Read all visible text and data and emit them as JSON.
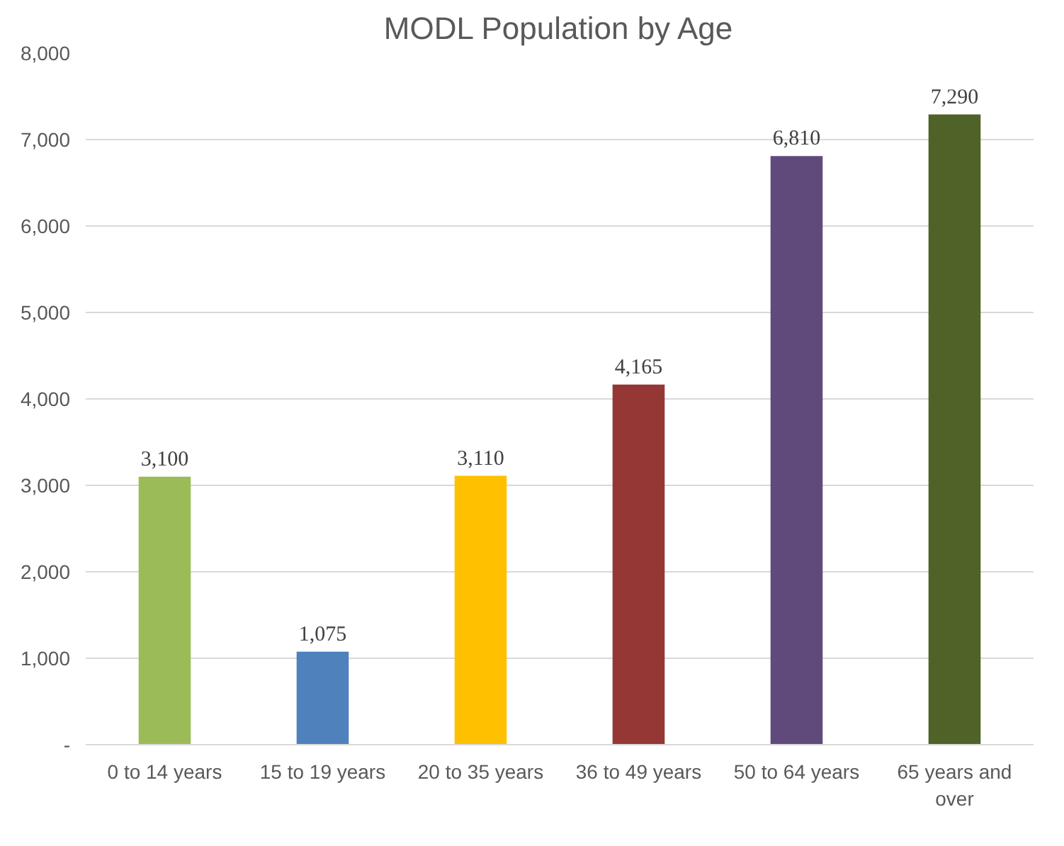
{
  "chart_data": {
    "type": "bar",
    "title": "MODL Population by Age",
    "categories": [
      "0 to 14 years",
      "15 to 19 years",
      "20 to 35 years",
      "36 to 49 years",
      "50 to 64 years",
      "65 years and over"
    ],
    "values": [
      3100,
      1075,
      3110,
      4165,
      6810,
      7290
    ],
    "colors": [
      "#9bbb59",
      "#4f81bd",
      "#ffc000",
      "#953735",
      "#604a7b",
      "#4f6228"
    ],
    "ylim": [
      0,
      8000
    ],
    "yticks": [
      {
        "value": 0,
        "label": "-"
      },
      {
        "value": 1000,
        "label": "1,000"
      },
      {
        "value": 2000,
        "label": "2,000"
      },
      {
        "value": 3000,
        "label": "3,000"
      },
      {
        "value": 4000,
        "label": "4,000"
      },
      {
        "value": 5000,
        "label": "5,000"
      },
      {
        "value": 6000,
        "label": "6,000"
      },
      {
        "value": 7000,
        "label": "7,000"
      },
      {
        "value": 8000,
        "label": "8,000"
      }
    ],
    "value_labels": [
      "3,100",
      "1,075",
      "3,110",
      "4,165",
      "6,810",
      "7,290"
    ],
    "grid": "y"
  }
}
